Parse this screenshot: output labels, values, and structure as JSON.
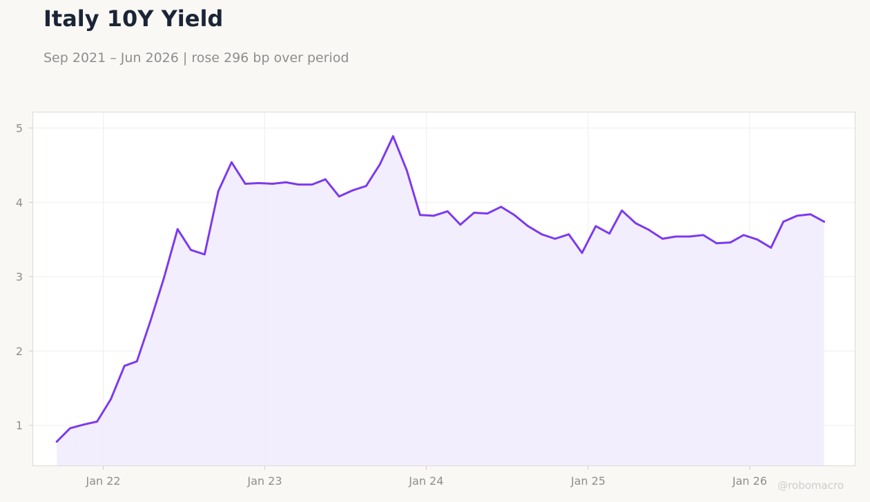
{
  "header": {
    "title": "Italy 10Y Yield",
    "subtitle": "Sep 2021 – Jun 2026 | rose 296 bp over period"
  },
  "watermark": "@robomacro",
  "colors": {
    "line": "#7c3aed",
    "fill": "#f1ecfd",
    "background": "#f9f8f5",
    "plot_background": "#ffffff",
    "grid": "#eeeeee",
    "axis_text": "#8d8d8d",
    "title": "#1b2537"
  },
  "chart_data": {
    "type": "area",
    "title": "Italy 10Y Yield",
    "subtitle": "Sep 2021 – Jun 2026 | rose 296 bp over period",
    "xlabel": "",
    "ylabel": "",
    "x_ticks": [
      "Jan 22",
      "Jan 23",
      "Jan 24",
      "Jan 25",
      "Jan 26"
    ],
    "y_ticks": [
      1,
      2,
      3,
      4,
      5
    ],
    "x_range": [
      "2021-07-25",
      "2026-08-28"
    ],
    "ylim": [
      0.45,
      5.22
    ],
    "grid": true,
    "legend": "none",
    "series": [
      {
        "x": [
          "2021-09",
          "2021-10",
          "2021-11",
          "2021-12",
          "2022-01",
          "2022-02",
          "2022-03",
          "2022-04",
          "2022-05",
          "2022-06",
          "2022-07",
          "2022-08",
          "2022-09",
          "2022-10",
          "2022-11",
          "2022-12",
          "2023-01",
          "2023-02",
          "2023-03",
          "2023-04",
          "2023-05",
          "2023-06",
          "2023-07",
          "2023-08",
          "2023-09",
          "2023-10",
          "2023-11",
          "2023-12",
          "2024-01",
          "2024-02",
          "2024-03",
          "2024-04",
          "2024-05",
          "2024-06",
          "2024-07",
          "2024-08",
          "2024-09",
          "2024-10",
          "2024-11",
          "2024-12",
          "2025-01",
          "2025-02",
          "2025-03",
          "2025-04",
          "2025-05",
          "2025-06",
          "2025-07",
          "2025-08",
          "2025-09",
          "2025-10",
          "2025-11",
          "2025-12",
          "2026-01",
          "2026-02",
          "2026-03",
          "2026-04",
          "2026-05",
          "2026-06"
        ],
        "values": [
          0.78,
          0.96,
          1.01,
          1.05,
          1.35,
          1.8,
          1.86,
          2.41,
          2.98,
          3.64,
          3.36,
          3.3,
          4.15,
          4.54,
          4.25,
          4.26,
          4.25,
          4.27,
          4.24,
          4.24,
          4.31,
          4.08,
          4.16,
          4.22,
          4.51,
          4.89,
          4.43,
          3.83,
          3.82,
          3.88,
          3.7,
          3.86,
          3.85,
          3.94,
          3.83,
          3.68,
          3.57,
          3.51,
          3.57,
          3.32,
          3.68,
          3.58,
          3.89,
          3.72,
          3.63,
          3.51,
          3.54,
          3.54,
          3.56,
          3.45,
          3.46,
          3.56,
          3.5,
          3.39,
          3.74,
          3.82,
          3.84,
          3.74
        ]
      }
    ]
  }
}
